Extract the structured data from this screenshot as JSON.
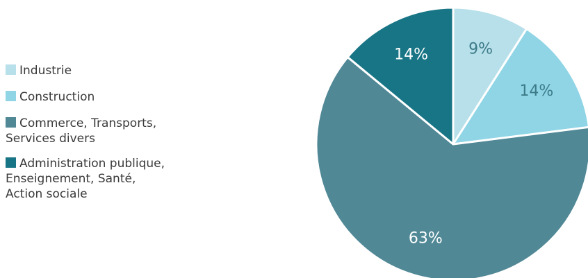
{
  "chart_data": {
    "type": "pie",
    "categories": [
      "Industrie",
      "Construction",
      "Commerce, Transports,\nServices divers",
      "Administration publique,\nEnseignement, Santé,\nAction sociale"
    ],
    "values": [
      9,
      14,
      63,
      14
    ],
    "data_labels": [
      "9%",
      "14%",
      "63%",
      "14%"
    ],
    "colors": [
      "#b7e0ea",
      "#8fd5e5",
      "#508896",
      "#187585"
    ],
    "label_colors": [
      "#3d7a88",
      "#3d7a88",
      "#ffffff",
      "#ffffff"
    ],
    "legend_position": "left",
    "start": "top, clockwise"
  }
}
